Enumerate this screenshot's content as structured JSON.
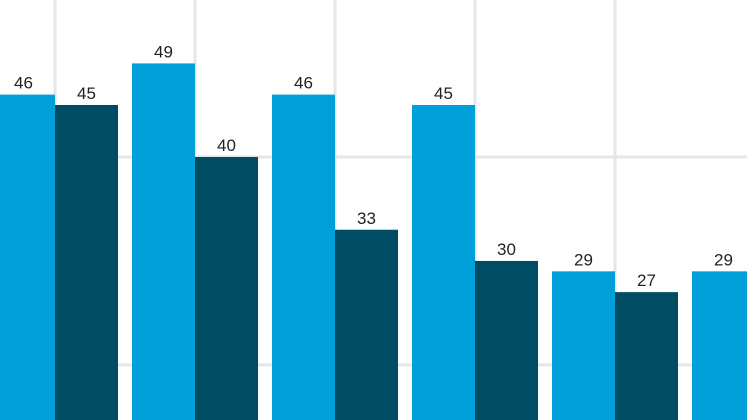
{
  "chart_data": {
    "type": "bar",
    "categories": [
      null,
      null,
      null,
      null,
      null,
      null
    ],
    "series": [
      {
        "color": "#009fda",
        "values": [
          46,
          49,
          46,
          45,
          29,
          29
        ]
      },
      {
        "color": "#004c63",
        "values": [
          45,
          40,
          33,
          30,
          27,
          null
        ]
      }
    ],
    "ylim": [
      14.7,
      55.1
    ],
    "yticks": [
      20,
      40
    ],
    "grid": true
  }
}
